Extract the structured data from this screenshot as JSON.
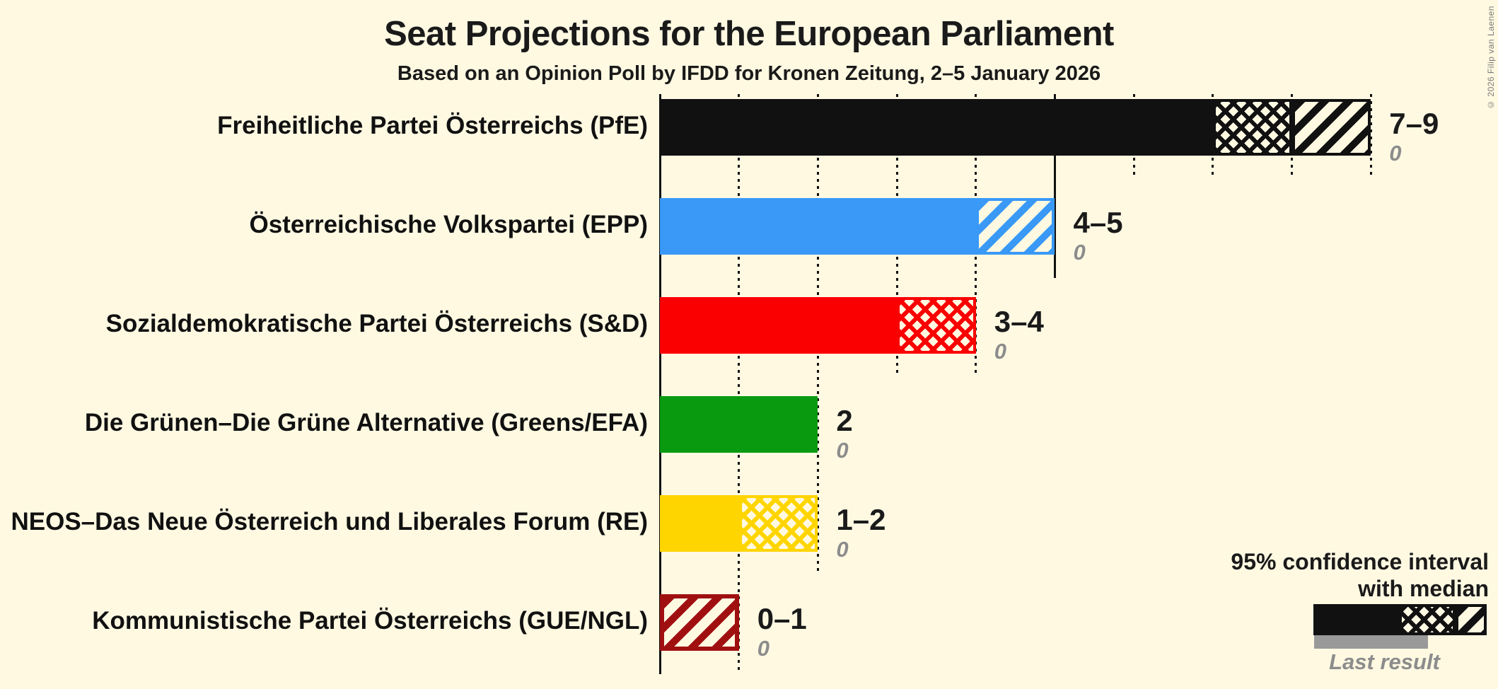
{
  "title": "Seat Projections for the European Parliament",
  "subtitle": "Based on an Opinion Poll by IFDD for Kronen Zeitung, 2–5 January 2026",
  "copyright": "© 2026 Filip van Laenen",
  "colors": {
    "background": "#FFF9E2",
    "grid": "#111111",
    "value_text": "#1A1A1A",
    "last_result_text": "#8C8C8C",
    "legend_last_result_bar": "#999999"
  },
  "legend": {
    "ci_line1": "95% confidence interval",
    "ci_line2": "with median",
    "last_result_label": "Last result"
  },
  "chart_data": {
    "type": "bar",
    "orientation": "horizontal",
    "title": "Seat Projections for the European Parliament",
    "subtitle": "Based on an Opinion Poll by IFDD for Kronen Zeitung, 2–5 January 2026",
    "x_axis": {
      "min": 0,
      "max": 9,
      "minor_grid_step": 1,
      "major_grid_step": 5,
      "grid": true
    },
    "categories": [
      "Freiheitliche Partei Österreichs (PfE)",
      "Österreichische Volkspartei (EPP)",
      "Sozialdemokratische Partei Österreichs (S&D)",
      "Die Grünen–Die Grüne Alternative (Greens/EFA)",
      "NEOS–Das Neue Österreich und Liberales Forum (RE)",
      "Kommunistische Partei Österreichs (GUE/NGL)"
    ],
    "parties": [
      {
        "label": "Freiheitliche Partei Österreichs (PfE)",
        "ci_low": 7,
        "median": 8,
        "ci_high": 9,
        "value_label": "7–9",
        "last_result": "0",
        "color": "#111111"
      },
      {
        "label": "Österreichische Volkspartei (EPP)",
        "ci_low": 4,
        "median": 4,
        "ci_high": 5,
        "value_label": "4–5",
        "last_result": "0",
        "color": "#3A99F7"
      },
      {
        "label": "Sozialdemokratische Partei Österreichs (S&D)",
        "ci_low": 3,
        "median": 4,
        "ci_high": 4,
        "value_label": "3–4",
        "last_result": "0",
        "color": "#FB0000"
      },
      {
        "label": "Die Grünen–Die Grüne Alternative (Greens/EFA)",
        "ci_low": 2,
        "median": 2,
        "ci_high": 2,
        "value_label": "2",
        "last_result": "0",
        "color": "#0A9A10"
      },
      {
        "label": "NEOS–Das Neue Österreich und Liberales Forum (RE)",
        "ci_low": 1,
        "median": 2,
        "ci_high": 2,
        "value_label": "1–2",
        "last_result": "0",
        "color": "#FFD500"
      },
      {
        "label": "Kommunistische Partei Österreichs (GUE/NGL)",
        "ci_low": 0,
        "median": 0,
        "ci_high": 1,
        "value_label": "0–1",
        "last_result": "0",
        "color": "#A01010"
      }
    ]
  }
}
